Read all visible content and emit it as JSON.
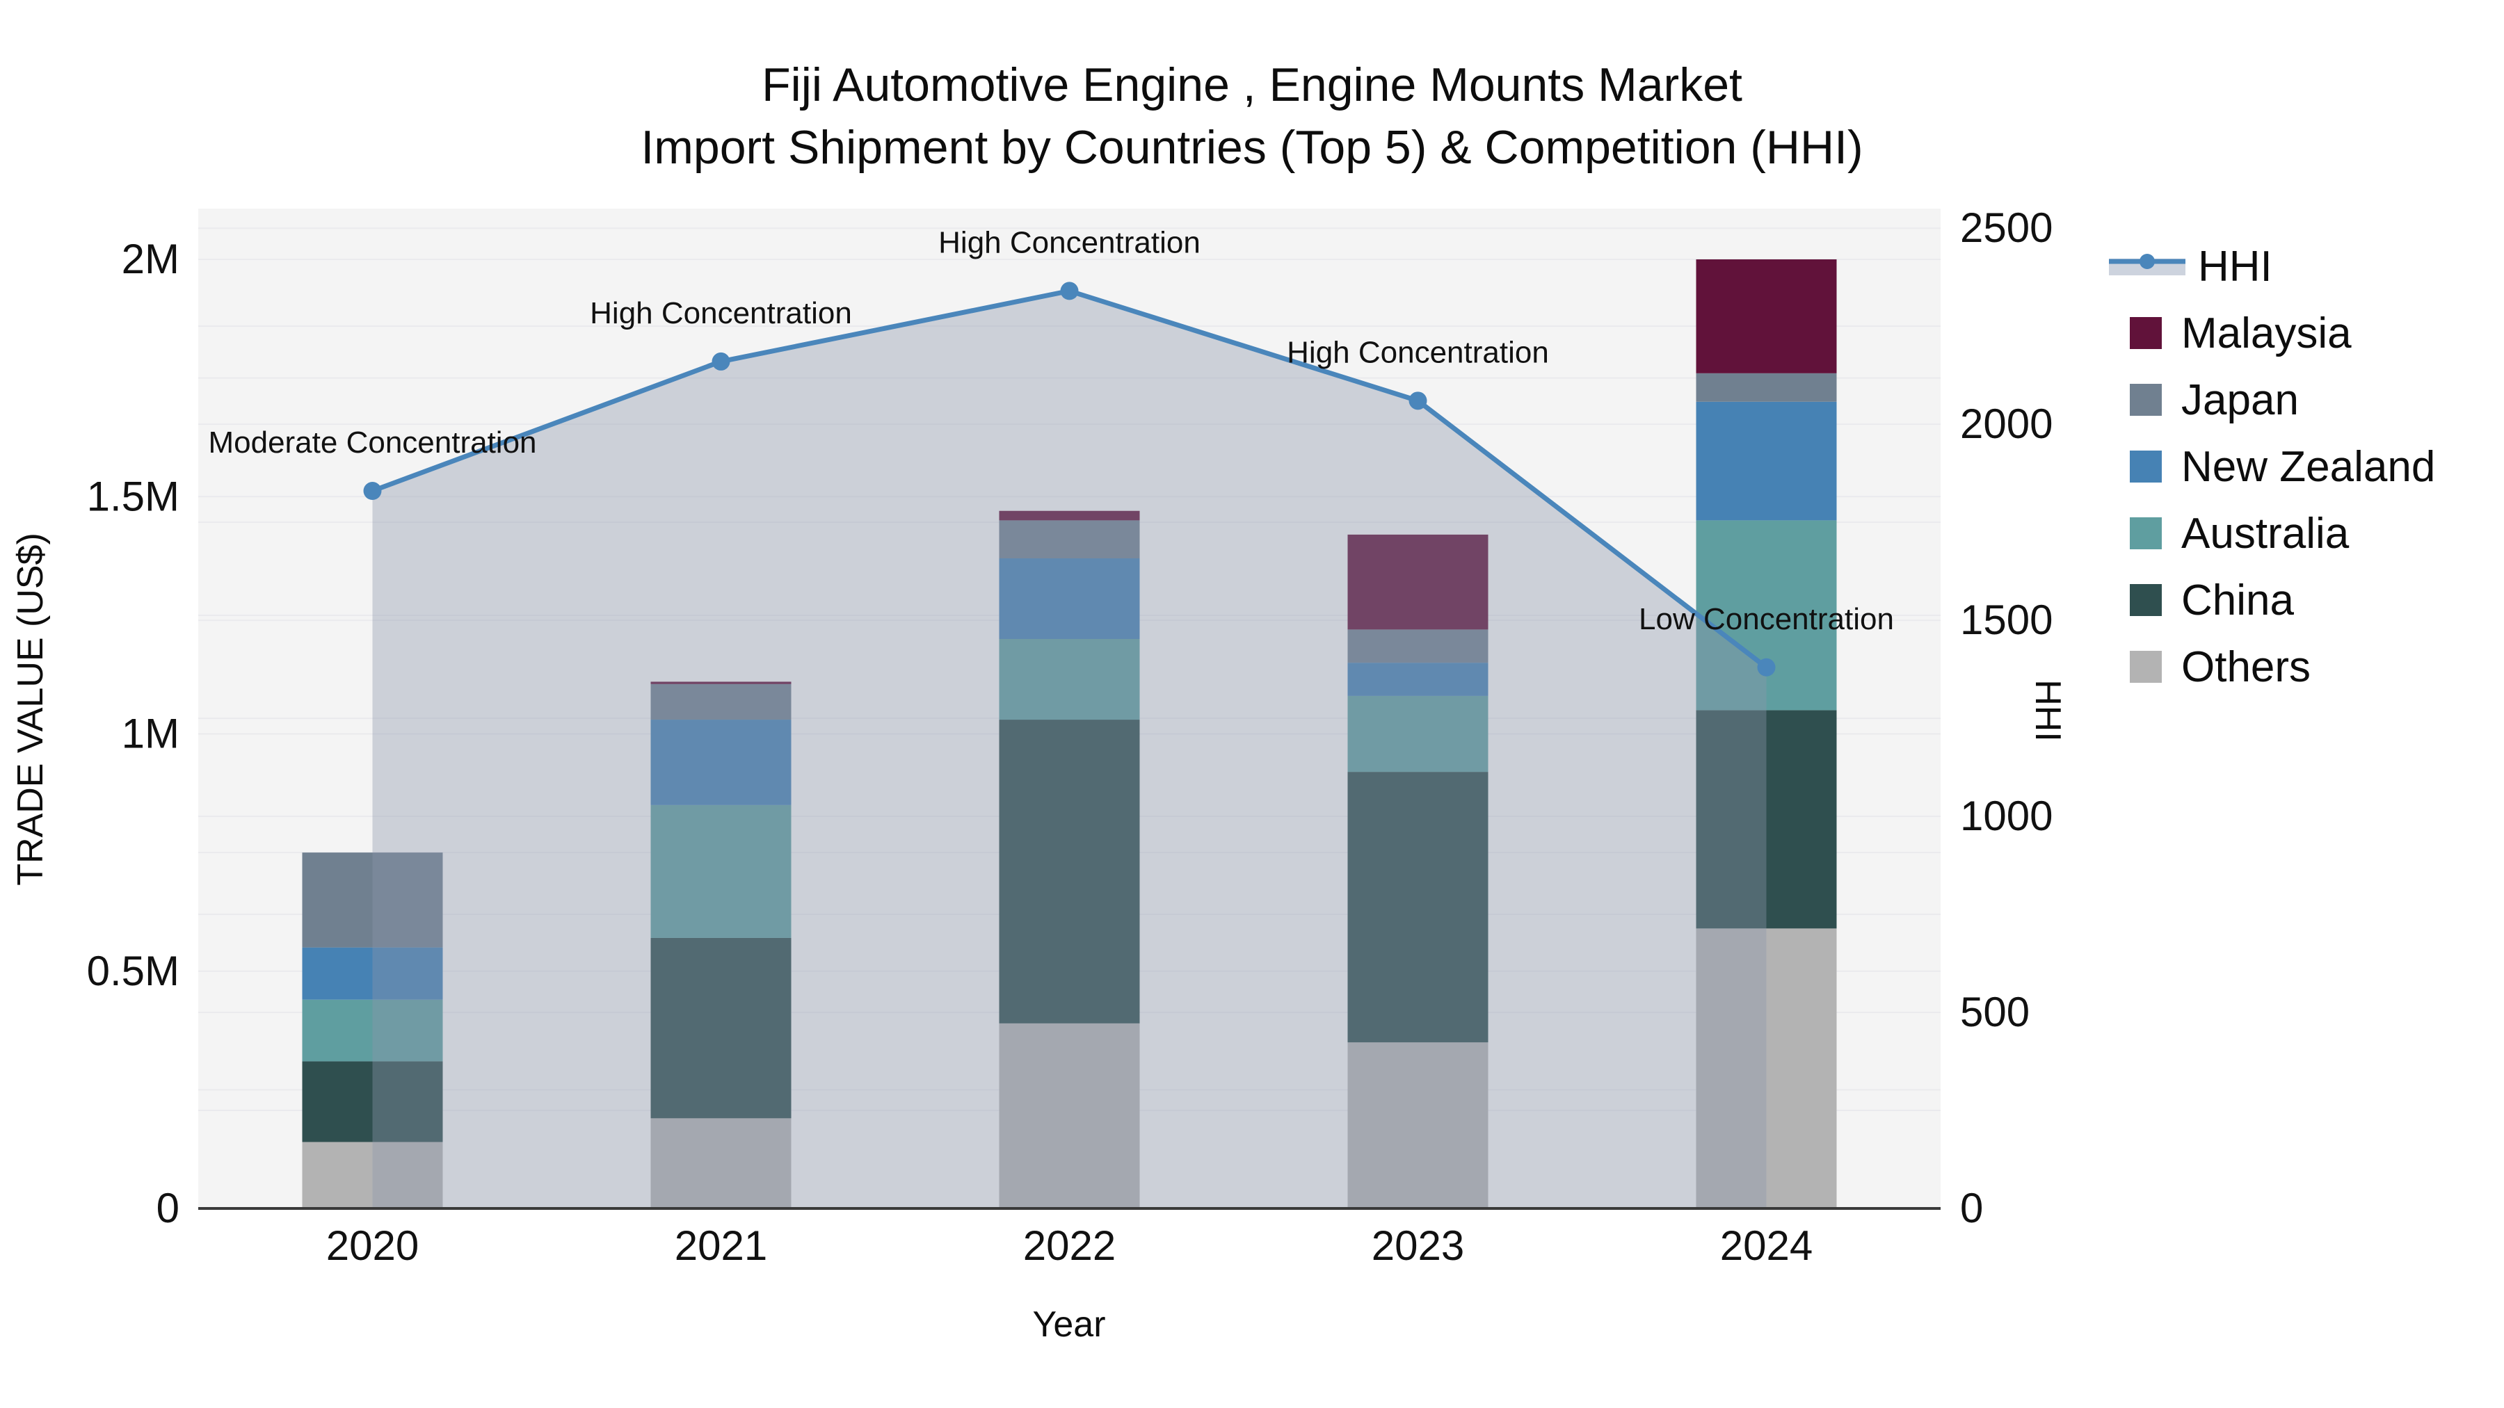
{
  "title": {
    "line1": "Fiji Automotive Engine , Engine Mounts Market",
    "line2": "Import Shipment by Countries (Top 5) & Competition (HHI)"
  },
  "chart_data": {
    "type": "combo_stacked_bar_line",
    "title": "Fiji Automotive Engine , Engine Mounts Market Import Shipment by Countries (Top 5) & Competition (HHI)",
    "categories": [
      "2020",
      "2021",
      "2022",
      "2023",
      "2024"
    ],
    "x_label": "Year",
    "unit": "US$",
    "series": [
      {
        "name": "Others",
        "color": "#B3B3B3",
        "values": [
          140000,
          190000,
          390000,
          350000,
          590000
        ]
      },
      {
        "name": "China",
        "color": "#2F4F4F",
        "values": [
          170000,
          380000,
          640000,
          570000,
          460000
        ]
      },
      {
        "name": "Australia",
        "color": "#5F9EA0",
        "values": [
          130000,
          280000,
          170000,
          160000,
          400000
        ]
      },
      {
        "name": "New Zealand",
        "color": "#4682B4",
        "values": [
          110000,
          180000,
          170000,
          70000,
          250000
        ]
      },
      {
        "name": "Japan",
        "color": "#708090",
        "values": [
          200000,
          75000,
          80000,
          70000,
          60000
        ]
      },
      {
        "name": "Malaysia",
        "color": "#61123A",
        "values": [
          0,
          5000,
          20000,
          200000,
          240000
        ]
      }
    ],
    "bar_totals": [
      750000,
      1110000,
      1470000,
      1420000,
      2000000
    ],
    "line": {
      "name": "HHI",
      "color": "#4A86BB",
      "fill_color": "rgba(139,149,170,0.38)",
      "values": [
        1830,
        2160,
        2340,
        2060,
        1380
      ],
      "annotations": [
        "Moderate Concentration",
        "High Concentration",
        "High Concentration",
        "High Concentration",
        "Low Concentration"
      ]
    },
    "y_left": {
      "label": "TRADE VALUE (US$)",
      "range": [
        0,
        2107000
      ],
      "ticks": [
        {
          "v": 0,
          "t": "0"
        },
        {
          "v": 500000,
          "t": "0.5M"
        },
        {
          "v": 1000000,
          "t": "1M"
        },
        {
          "v": 1500000,
          "t": "1.5M"
        },
        {
          "v": 2000000,
          "t": "2M"
        }
      ],
      "minor_step": 250000
    },
    "y_right": {
      "label": "HHI",
      "range": [
        0,
        2550
      ],
      "ticks": [
        0,
        500,
        1000,
        1500,
        2000,
        2500
      ],
      "minor_step": 250
    },
    "legend_order": [
      "HHI",
      "Malaysia",
      "Japan",
      "New Zealand",
      "Australia",
      "China",
      "Others"
    ],
    "colors": {
      "plot_bg": "#F4F4F4",
      "grid": "#EAEAED",
      "axis_line": "#3A3A3A",
      "text": "#111111",
      "legend_hhi_band": "#CDD3DE"
    },
    "layout": {
      "grid": "on",
      "legend_position": "right-top",
      "annotation_font_size": 44,
      "tick_font_size": 60
    }
  }
}
